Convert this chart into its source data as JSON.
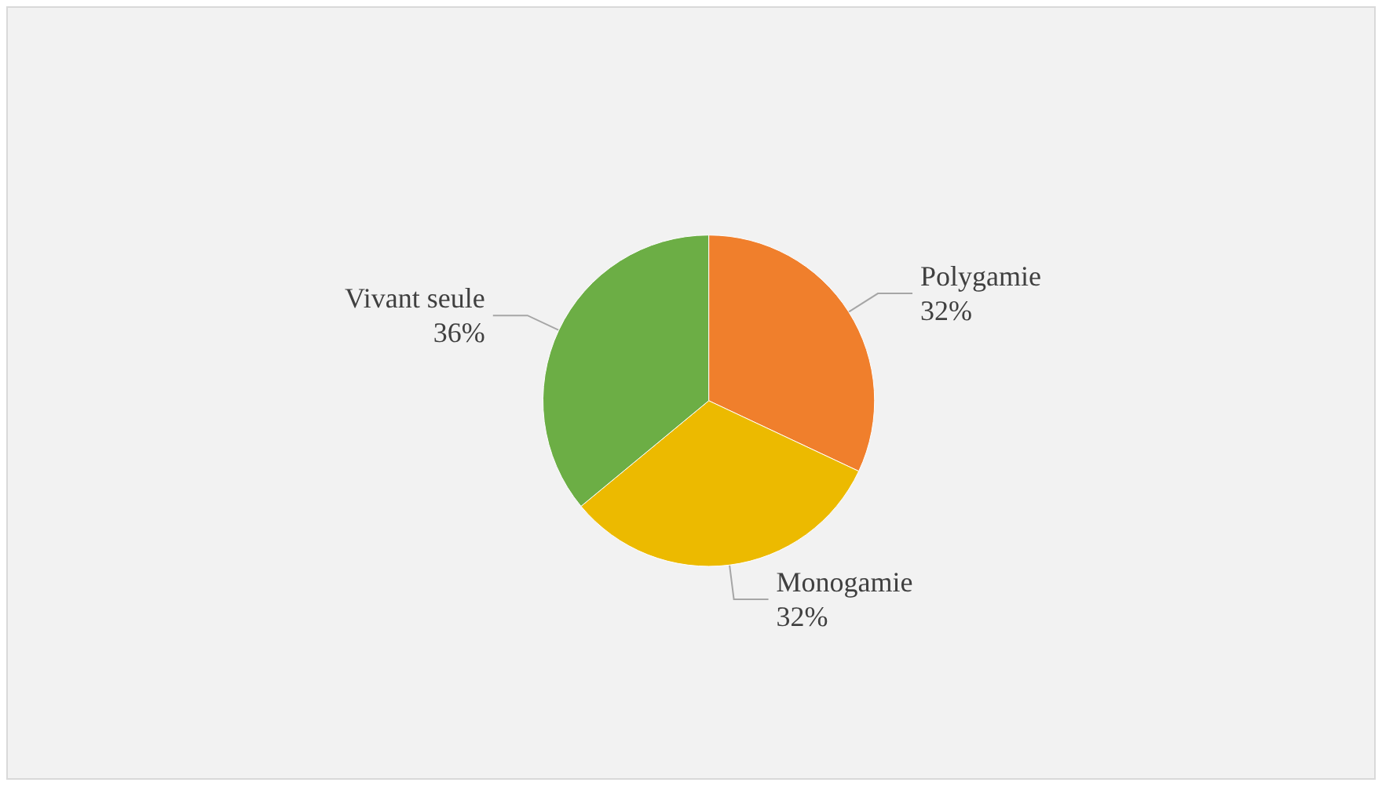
{
  "chart_data": {
    "type": "pie",
    "categories": [
      "Polygamie",
      "Monogamie",
      "Vivant seule"
    ],
    "values": [
      32,
      32,
      36
    ],
    "colors": [
      "#f07f2c",
      "#ecba00",
      "#6cae45"
    ],
    "value_labels": [
      "32%",
      "32%",
      "36%"
    ],
    "legend": false
  }
}
